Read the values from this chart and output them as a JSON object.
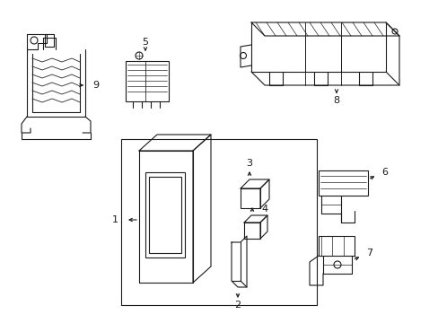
{
  "bg_color": "#ffffff",
  "line_color": "#1a1a1a",
  "line_width": 0.8,
  "fig_width": 4.89,
  "fig_height": 3.6,
  "dpi": 100
}
